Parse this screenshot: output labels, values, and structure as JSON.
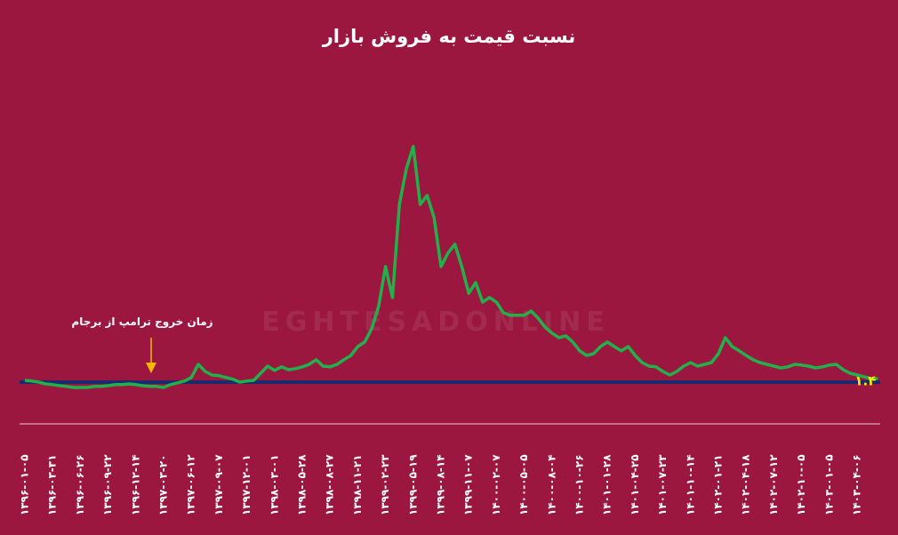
{
  "chart_data": {
    "type": "line",
    "title": "نسبت قیمت به فروش بازار",
    "annotation": "زمان خروج ترامپ از برجام",
    "watermark": "EGHTESADONLINE",
    "categories": [
      "۱۳۹۶-۰۱-۰۵",
      null,
      null,
      null,
      "۱۳۹۶-۰۳-۳۱",
      null,
      null,
      null,
      "۱۳۹۶-۰۶-۲۶",
      null,
      null,
      null,
      "۱۳۹۶-۰۹-۲۲",
      null,
      null,
      null,
      "۱۳۹۶-۱۲-۱۴",
      null,
      null,
      null,
      "۱۳۹۷-۰۳-۲۰",
      null,
      null,
      null,
      "۱۳۹۷-۰۶-۱۲",
      null,
      null,
      null,
      "۱۳۹۷-۰۹-۰۷",
      null,
      null,
      null,
      "۱۳۹۷-۱۲-۰۱",
      null,
      null,
      null,
      "۱۳۹۸-۰۳-۰۱",
      null,
      null,
      null,
      "۱۳۹۸-۰۵-۲۸",
      null,
      null,
      null,
      "۱۳۹۸-۰۸-۲۷",
      null,
      null,
      null,
      "۱۳۹۸-۱۱-۲۱",
      null,
      null,
      null,
      "۱۳۹۹-۰۲-۲۳",
      null,
      null,
      null,
      "۱۳۹۹-۰۵-۱۹",
      null,
      null,
      null,
      "۱۳۹۹-۰۸-۱۴",
      null,
      null,
      null,
      "۱۳۹۹-۱۱-۰۷",
      null,
      null,
      null,
      "۱۴۰۰-۰۲-۰۷",
      null,
      null,
      null,
      "۱۴۰۰-۰۵-۰۵",
      null,
      null,
      null,
      "۱۴۰۰-۰۸-۰۴",
      null,
      null,
      null,
      "۱۴۰۰-۱۰-۲۶",
      null,
      null,
      null,
      "۱۴۰۱-۰۱-۲۸",
      null,
      null,
      null,
      "۱۴۰۱-۰۴-۲۵",
      null,
      null,
      null,
      "۱۴۰۱-۰۷-۲۳",
      null,
      null,
      null,
      "۱۴۰۱-۱۰-۱۴",
      null,
      null,
      null,
      "۱۴۰۲-۰۱-۲۱",
      null,
      null,
      null,
      "۱۴۰۲-۰۴-۱۸",
      null,
      null,
      null,
      "۱۴۰۲-۰۷-۱۲",
      null,
      null,
      null,
      "۱۴۰۲-۱۰-۰۵",
      null,
      null,
      null,
      "۱۴۰۳-۰۱-۰۵",
      null,
      null,
      null,
      "۱۴۰۳-۰۴-۰۶",
      null,
      null,
      null
    ],
    "values": [
      1.35,
      1.33,
      1.3,
      1.25,
      1.23,
      1.2,
      1.18,
      1.15,
      1.15,
      1.15,
      1.18,
      1.18,
      1.2,
      1.23,
      1.23,
      1.25,
      1.23,
      1.2,
      1.18,
      1.18,
      1.15,
      1.23,
      1.28,
      1.33,
      1.43,
      1.8,
      1.6,
      1.5,
      1.48,
      1.43,
      1.38,
      1.3,
      1.33,
      1.35,
      1.55,
      1.75,
      1.63,
      1.73,
      1.65,
      1.68,
      1.73,
      1.8,
      1.93,
      1.75,
      1.73,
      1.8,
      1.93,
      2.05,
      2.3,
      2.43,
      2.8,
      3.43,
      4.55,
      3.68,
      6.3,
      7.3,
      7.93,
      6.3,
      6.55,
      5.93,
      4.55,
      4.93,
      5.18,
      4.55,
      3.8,
      4.1,
      3.55,
      3.68,
      3.55,
      3.25,
      3.18,
      3.18,
      3.18,
      3.3,
      3.1,
      2.85,
      2.68,
      2.55,
      2.6,
      2.43,
      2.18,
      2.05,
      2.1,
      2.3,
      2.43,
      2.3,
      2.18,
      2.3,
      2.05,
      1.85,
      1.75,
      1.73,
      1.6,
      1.5,
      1.6,
      1.75,
      1.85,
      1.75,
      1.8,
      1.85,
      2.1,
      2.55,
      2.3,
      2.18,
      2.05,
      1.93,
      1.85,
      1.8,
      1.75,
      1.7,
      1.73,
      1.8,
      1.78,
      1.75,
      1.7,
      1.73,
      1.78,
      1.8,
      1.65,
      1.55,
      1.5,
      1.45,
      1.4,
      1.4
    ],
    "value_labels": [
      null,
      null,
      null,
      null,
      null,
      null,
      null,
      null,
      null,
      null,
      null,
      null,
      null,
      null,
      null,
      null,
      null,
      null,
      null,
      null,
      null,
      null,
      null,
      null,
      null,
      null,
      null,
      null,
      null,
      null,
      null,
      null,
      null,
      null,
      null,
      null,
      null,
      null,
      null,
      null,
      null,
      null,
      null,
      null,
      null,
      null,
      null,
      null,
      null,
      null,
      null,
      null,
      null,
      null,
      null,
      null,
      null,
      null,
      null,
      null,
      null,
      null,
      null,
      null,
      null,
      null,
      null,
      null,
      null,
      null,
      null,
      null,
      null,
      null,
      null,
      null,
      null,
      null,
      null,
      null,
      null,
      null,
      null,
      null,
      null,
      null,
      null,
      null,
      null,
      null,
      null,
      null,
      null,
      null,
      null,
      null,
      null,
      null,
      null,
      null,
      null,
      null,
      null,
      null,
      null,
      null,
      null,
      null,
      null,
      null,
      null,
      null,
      null,
      null,
      null,
      null,
      null,
      null,
      null,
      null,
      null,
      null,
      null,
      "۱.۴"
    ],
    "color": "#22b04a",
    "ylim": [
      1.1,
      8.3
    ]
  }
}
